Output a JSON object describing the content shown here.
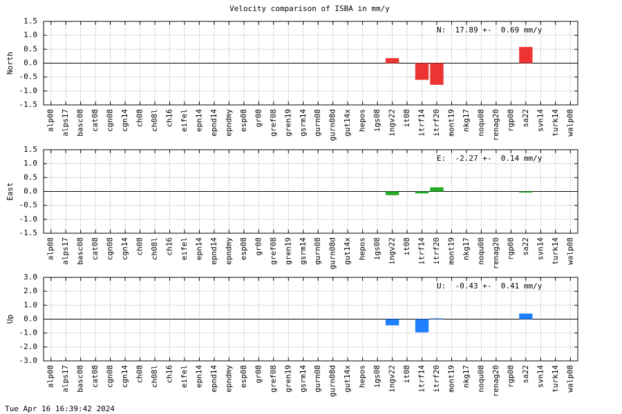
{
  "title": "Velocity comparison of ISBA in mm/y",
  "timestamp": "Tue Apr 16 16:39:42 2024",
  "chart_data": [
    {
      "type": "bar",
      "ylabel": "North",
      "annotation": "N:  17.89 +-  0.69 mm/y",
      "color": "#ee3333",
      "grid": true,
      "categories": [
        "alp08",
        "alps17",
        "basc08",
        "cat08",
        "cgn08",
        "cgn14",
        "ch08",
        "ch08l",
        "ch16",
        "eifel",
        "epn14",
        "epnd14",
        "epndmy",
        "esp08",
        "gr08",
        "gref08",
        "gren19",
        "gsrm14",
        "gurn08",
        "gurn08d",
        "gut14x",
        "hepos",
        "igs08",
        "ingv22",
        "it08",
        "itrf14",
        "itrf20",
        "mont19",
        "nkg17",
        "noqu08",
        "renag20",
        "rgp08",
        "sa22",
        "svn14",
        "turk14",
        "walp08"
      ],
      "values": [
        null,
        null,
        null,
        null,
        null,
        null,
        null,
        null,
        null,
        null,
        null,
        null,
        null,
        null,
        null,
        null,
        null,
        null,
        null,
        null,
        null,
        null,
        null,
        0.18,
        null,
        -0.6,
        -0.78,
        null,
        null,
        null,
        null,
        null,
        0.58,
        null,
        null,
        null
      ],
      "ylim": [
        -1.5,
        1.5
      ],
      "yticks": [
        {
          "value": 1.5,
          "label": "1.5"
        },
        {
          "value": 1,
          "label": "1.0"
        },
        {
          "value": 0.5,
          "label": "0.5"
        },
        {
          "value": 0,
          "label": "0.0"
        },
        {
          "value": -0.5,
          "label": "-0.5"
        },
        {
          "value": -1,
          "label": "-1.0"
        },
        {
          "value": -1.5,
          "label": "-1.5"
        }
      ]
    },
    {
      "type": "bar",
      "ylabel": "East",
      "annotation": "E:  -2.27 +-  0.14 mm/y",
      "color": "#22aa22",
      "grid": true,
      "categories": [
        "alp08",
        "alps17",
        "basc08",
        "cat08",
        "cgn08",
        "cgn14",
        "ch08",
        "ch08l",
        "ch16",
        "eifel",
        "epn14",
        "epnd14",
        "epndmy",
        "esp08",
        "gr08",
        "gref08",
        "gren19",
        "gsrm14",
        "gurn08",
        "gurn08d",
        "gut14x",
        "hepos",
        "igs08",
        "ingv22",
        "it08",
        "itrf14",
        "itrf20",
        "mont19",
        "nkg17",
        "noqu08",
        "renag20",
        "rgp08",
        "sa22",
        "svn14",
        "turk14",
        "walp08"
      ],
      "values": [
        null,
        null,
        null,
        null,
        null,
        null,
        null,
        null,
        null,
        null,
        null,
        null,
        null,
        null,
        null,
        null,
        null,
        null,
        null,
        null,
        null,
        null,
        null,
        -0.13,
        null,
        -0.07,
        0.15,
        null,
        null,
        null,
        null,
        null,
        -0.04,
        null,
        null,
        null
      ],
      "ylim": [
        -1.5,
        1.5
      ],
      "yticks": [
        {
          "value": 1.5,
          "label": "1.5"
        },
        {
          "value": 1,
          "label": "1.0"
        },
        {
          "value": 0.5,
          "label": "0.5"
        },
        {
          "value": 0,
          "label": "0.0"
        },
        {
          "value": -0.5,
          "label": "-0.5"
        },
        {
          "value": -1,
          "label": "-1.0"
        },
        {
          "value": -1.5,
          "label": "-1.5"
        }
      ]
    },
    {
      "type": "bar",
      "ylabel": "Up",
      "annotation": "U:  -0.43 +-  0.41 mm/y",
      "color": "#1e7fff",
      "grid": true,
      "categories": [
        "alp08",
        "alps17",
        "basc08",
        "cat08",
        "cgn08",
        "cgn14",
        "ch08",
        "ch08l",
        "ch16",
        "eifel",
        "epn14",
        "epnd14",
        "epndmy",
        "esp08",
        "gr08",
        "gref08",
        "gren19",
        "gsrm14",
        "gurn08",
        "gurn08d",
        "gut14x",
        "hepos",
        "igs08",
        "ingv22",
        "it08",
        "itrf14",
        "itrf20",
        "mont19",
        "nkg17",
        "noqu08",
        "renag20",
        "rgp08",
        "sa22",
        "svn14",
        "turk14",
        "walp08"
      ],
      "values": [
        null,
        null,
        null,
        null,
        null,
        null,
        null,
        null,
        null,
        null,
        null,
        null,
        null,
        null,
        null,
        null,
        null,
        null,
        null,
        null,
        null,
        null,
        null,
        -0.45,
        null,
        -0.95,
        0.05,
        null,
        null,
        null,
        null,
        null,
        0.4,
        null,
        null,
        null
      ],
      "ylim": [
        -3,
        3
      ],
      "yticks": [
        {
          "value": 3,
          "label": "3.0"
        },
        {
          "value": 2,
          "label": "2.0"
        },
        {
          "value": 1,
          "label": "1.0"
        },
        {
          "value": 0,
          "label": "0.0"
        },
        {
          "value": -1,
          "label": "-1.0"
        },
        {
          "value": -2,
          "label": "-2.0"
        },
        {
          "value": -3,
          "label": "-3.0"
        }
      ]
    }
  ]
}
